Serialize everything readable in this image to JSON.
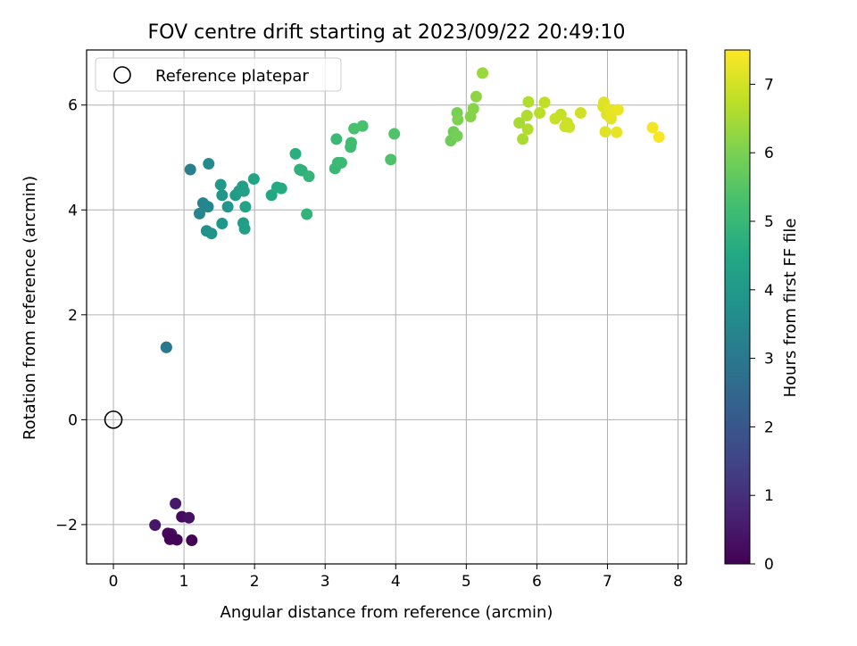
{
  "chart_data": {
    "type": "scatter",
    "title": "FOV centre drift starting at 2023/09/22 20:49:10",
    "xlabel": "Angular distance from reference (arcmin)",
    "ylabel": "Rotation from reference (arcmin)",
    "xlim": [
      -0.38,
      8.12
    ],
    "ylim": [
      -2.75,
      7.05
    ],
    "xticks": [
      0,
      1,
      2,
      3,
      4,
      5,
      6,
      7,
      8
    ],
    "yticks": [
      -2,
      0,
      2,
      4,
      6
    ],
    "xtick_labels": [
      "0",
      "1",
      "2",
      "3",
      "4",
      "5",
      "6",
      "7",
      "8"
    ],
    "ytick_labels": [
      "−2",
      "0",
      "2",
      "4",
      "6"
    ],
    "grid": true,
    "legend": {
      "position": "top-left",
      "entries": [
        {
          "label": "Reference platepar",
          "marker": "open-circle"
        }
      ]
    },
    "reference_point": {
      "x": 0,
      "y": 0
    },
    "colorbar": {
      "label": "Hours from first FF file",
      "colormap": "viridis",
      "range": [
        0,
        7.5
      ],
      "ticks": [
        0,
        1,
        2,
        3,
        4,
        5,
        6,
        7
      ],
      "tick_labels": [
        "0",
        "1",
        "2",
        "3",
        "4",
        "5",
        "6",
        "7"
      ]
    },
    "series": [
      {
        "x": [
          0.88,
          0.59,
          0.82,
          0.97,
          1.07,
          0.77,
          0.8,
          0.84,
          0.9,
          1.11,
          0.75,
          0.75,
          1.09,
          1.27,
          1.22,
          1.34,
          1.35,
          1.32,
          1.39,
          1.54,
          1.62,
          1.54,
          1.52,
          1.73,
          1.78,
          1.83,
          1.84,
          1.86,
          1.85,
          1.87,
          1.99,
          2.24,
          2.32,
          2.38,
          2.58,
          2.64,
          2.67,
          2.74,
          2.77,
          3.14,
          3.16,
          3.18,
          3.23,
          3.36,
          3.37,
          3.41,
          3.53,
          3.93,
          3.98,
          4.78,
          4.82,
          4.87,
          4.87,
          4.88,
          5.06,
          5.1,
          5.14,
          5.23,
          5.75,
          5.8,
          5.86,
          5.88,
          5.87,
          6.04,
          6.11,
          6.26,
          6.34,
          6.4,
          6.43,
          6.46,
          6.62,
          6.94,
          6.95,
          6.97,
          6.99,
          7.03,
          7.05,
          7.06,
          7.13,
          7.15,
          7.64,
          7.73
        ],
        "y": [
          -1.6,
          -2.01,
          -2.18,
          -1.85,
          -1.87,
          -2.17,
          -2.28,
          -2.27,
          -2.29,
          -2.3,
          1.38,
          1.38,
          4.77,
          4.13,
          3.93,
          4.06,
          4.88,
          3.6,
          3.55,
          3.74,
          4.06,
          4.28,
          4.48,
          4.28,
          4.36,
          4.45,
          3.75,
          3.64,
          4.36,
          4.06,
          4.59,
          4.28,
          4.43,
          4.41,
          5.07,
          4.77,
          4.75,
          3.92,
          4.64,
          4.79,
          5.35,
          4.9,
          4.9,
          5.2,
          5.28,
          5.55,
          5.6,
          4.96,
          5.45,
          5.32,
          5.49,
          5.41,
          5.85,
          5.72,
          5.78,
          5.93,
          6.16,
          6.61,
          5.66,
          5.35,
          5.8,
          6.06,
          5.54,
          5.85,
          6.05,
          5.74,
          5.82,
          5.59,
          5.66,
          5.58,
          5.85,
          5.97,
          6.05,
          5.49,
          5.82,
          5.91,
          5.74,
          5.86,
          5.48,
          5.91,
          5.57,
          5.39
        ],
        "hours": [
          0.52,
          0.45,
          0.39,
          0.2,
          0.33,
          0.15,
          0.09,
          0.08,
          0.06,
          0.02,
          2.98,
          3.02,
          3.2,
          3.36,
          3.42,
          3.46,
          3.55,
          3.76,
          3.82,
          3.9,
          3.9,
          3.96,
          4.0,
          4.08,
          4.14,
          4.2,
          4.18,
          4.24,
          4.26,
          4.3,
          4.4,
          4.46,
          4.55,
          4.58,
          4.7,
          4.78,
          4.8,
          4.86,
          4.9,
          5.02,
          5.06,
          5.02,
          5.08,
          5.14,
          5.16,
          5.3,
          5.3,
          5.36,
          5.4,
          5.82,
          5.86,
          5.9,
          5.96,
          6.02,
          6.1,
          6.16,
          6.22,
          6.36,
          6.5,
          6.54,
          6.6,
          6.62,
          6.64,
          6.72,
          6.78,
          6.84,
          6.86,
          6.9,
          6.92,
          6.94,
          6.96,
          7.1,
          7.12,
          7.14,
          7.16,
          7.18,
          7.2,
          7.22,
          7.24,
          7.3,
          7.38,
          7.44
        ]
      }
    ]
  }
}
